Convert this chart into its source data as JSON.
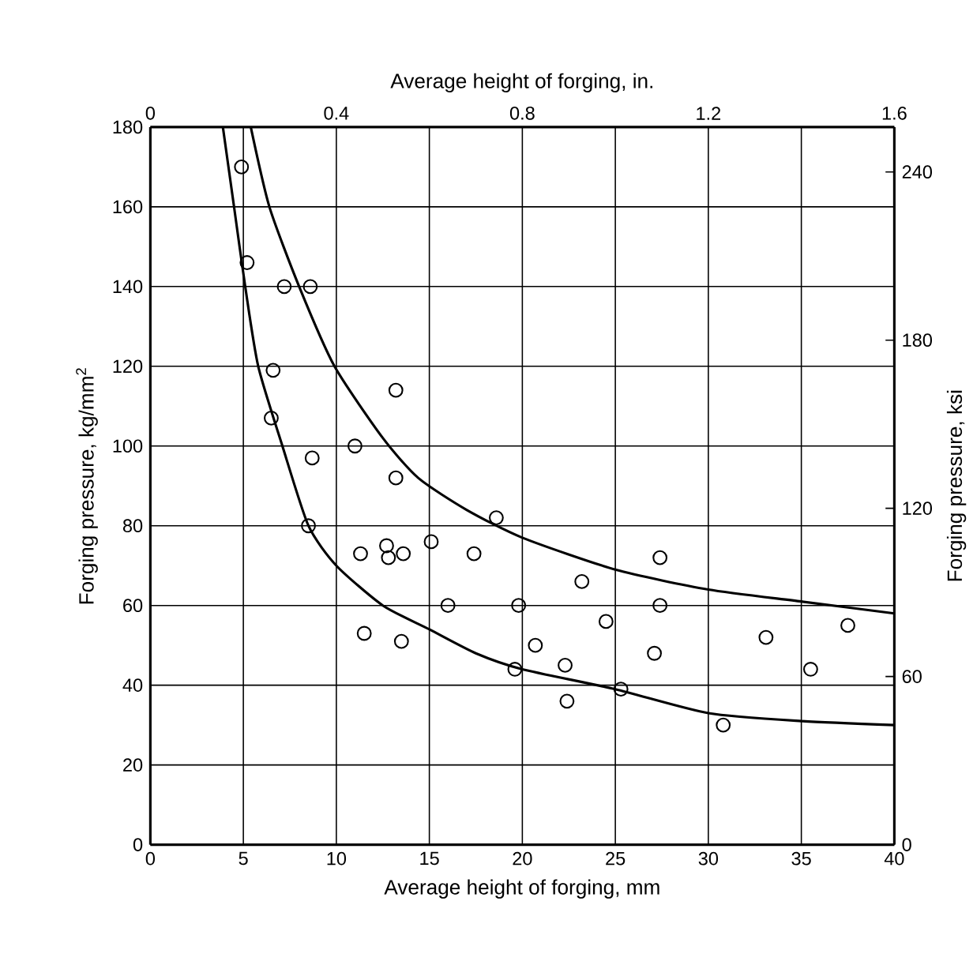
{
  "chart_data": {
    "type": "scatter",
    "xlabel": "Average height of forging, mm",
    "x2label": "Average height of forging, in.",
    "ylabel": "Forging pressure, kg/mm$^{2}$",
    "y2label": "Forging pressure, ksi",
    "xlim": [
      0,
      40
    ],
    "xticks": [
      0,
      5,
      10,
      15,
      20,
      25,
      30,
      35,
      40
    ],
    "x2lim": [
      0,
      1.6
    ],
    "x2ticks": [
      0,
      0.4,
      0.8,
      1.2,
      1.6
    ],
    "ylim": [
      0,
      180
    ],
    "yticks": [
      0,
      20,
      40,
      60,
      80,
      100,
      120,
      140,
      160,
      180
    ],
    "y2lim": [
      0,
      256
    ],
    "y2ticks": [
      0,
      60,
      120,
      180,
      240
    ],
    "grid": true,
    "series": [
      {
        "type": "scatter",
        "marker": "circle",
        "color": "#000000",
        "x": [
          4.9,
          5.2,
          7.2,
          8.6,
          6.6,
          13.2,
          6.5,
          11.0,
          8.7,
          13.2,
          18.6,
          8.5,
          11.3,
          12.7,
          12.8,
          13.6,
          15.1,
          17.4,
          27.4,
          23.2,
          16.0,
          19.8,
          27.4,
          24.5,
          11.5,
          13.5,
          20.7,
          27.1,
          33.1,
          37.5,
          19.6,
          22.3,
          35.5,
          22.4,
          25.3,
          30.8
        ],
        "values": [
          170,
          146,
          140,
          140,
          119,
          114,
          107,
          100,
          97,
          92,
          82,
          80,
          73,
          75,
          72,
          73,
          76,
          73,
          72,
          66,
          60,
          60,
          60,
          56,
          53,
          51,
          50,
          48,
          52,
          55,
          44,
          45,
          44,
          36,
          39,
          30
        ]
      },
      {
        "type": "line",
        "color": "#000000",
        "x": [
          5.4,
          6.4,
          8.0,
          9.9,
          12.5,
          14.4,
          17,
          20,
          25,
          30,
          35,
          40
        ],
        "values": [
          180,
          160,
          140,
          120,
          102,
          92,
          84,
          77,
          69,
          64,
          61,
          58
        ]
      },
      {
        "type": "line",
        "color": "#000000",
        "x": [
          3.9,
          4.5,
          5.1,
          5.8,
          7.1,
          8.5,
          10,
          12.5,
          15,
          17.5,
          20,
          25,
          30,
          35,
          40
        ],
        "values": [
          180,
          160,
          140,
          120,
          100,
          80,
          70,
          60,
          54,
          48,
          44,
          39,
          33,
          31,
          30
        ]
      }
    ]
  }
}
